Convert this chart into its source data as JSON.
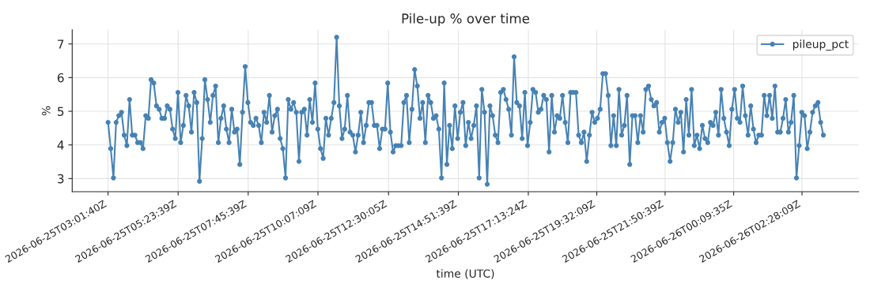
{
  "chart_data": {
    "type": "line",
    "title": "Pile-up % over time",
    "xlabel": "time (UTC)",
    "ylabel": "%",
    "x": [
      "2026-06-25T03:01:40",
      "2026-06-25T03:07:07",
      "2026-06-25T03:12:34",
      "2026-06-25T03:18:01",
      "2026-06-25T03:23:28",
      "2026-06-25T03:28:55",
      "2026-06-25T03:34:22",
      "2026-06-25T03:39:49",
      "2026-06-25T03:45:16",
      "2026-06-25T03:50:43",
      "2026-06-25T03:56:10",
      "2026-06-25T04:01:37",
      "2026-06-25T04:07:04",
      "2026-06-25T04:12:31",
      "2026-06-25T04:17:58",
      "2026-06-25T04:23:25",
      "2026-06-25T04:28:52",
      "2026-06-25T04:34:19",
      "2026-06-25T04:39:46",
      "2026-06-25T04:45:13",
      "2026-06-25T04:50:40",
      "2026-06-25T04:56:07",
      "2026-06-25T05:01:34",
      "2026-06-25T05:07:01",
      "2026-06-25T05:12:28",
      "2026-06-25T05:17:55",
      "2026-06-25T05:23:22",
      "2026-06-25T05:28:49",
      "2026-06-25T05:34:16",
      "2026-06-25T05:39:43",
      "2026-06-25T05:45:10",
      "2026-06-25T05:50:37",
      "2026-06-25T05:56:04",
      "2026-06-25T06:01:31",
      "2026-06-25T06:06:58",
      "2026-06-25T06:12:25",
      "2026-06-25T06:17:52",
      "2026-06-25T06:23:19",
      "2026-06-25T06:28:46",
      "2026-06-25T06:34:13",
      "2026-06-25T06:39:40",
      "2026-06-25T06:45:07",
      "2026-06-25T06:50:34",
      "2026-06-25T06:56:01",
      "2026-06-25T07:01:28",
      "2026-06-25T07:06:55",
      "2026-06-25T07:12:22",
      "2026-06-25T07:17:49",
      "2026-06-25T07:23:16",
      "2026-06-25T07:28:43",
      "2026-06-25T07:34:10",
      "2026-06-25T07:39:37",
      "2026-06-25T07:45:04",
      "2026-06-25T07:50:31",
      "2026-06-25T07:55:58",
      "2026-06-25T08:01:25",
      "2026-06-25T08:06:52",
      "2026-06-25T08:12:19",
      "2026-06-25T08:17:46",
      "2026-06-25T08:23:13",
      "2026-06-25T08:28:40",
      "2026-06-25T08:34:07",
      "2026-06-25T08:39:34",
      "2026-06-25T08:45:01",
      "2026-06-25T08:50:28",
      "2026-06-25T08:55:55",
      "2026-06-25T09:01:22",
      "2026-06-25T09:06:49",
      "2026-06-25T09:12:16",
      "2026-06-25T09:17:43",
      "2026-06-25T09:23:10",
      "2026-06-25T09:28:37",
      "2026-06-25T09:34:04",
      "2026-06-25T09:39:31",
      "2026-06-25T09:44:58",
      "2026-06-25T09:50:25",
      "2026-06-25T09:55:52",
      "2026-06-25T10:01:19",
      "2026-06-25T10:06:46",
      "2026-06-25T10:12:13",
      "2026-06-25T10:17:40",
      "2026-06-25T10:23:07",
      "2026-06-25T10:28:34",
      "2026-06-25T10:34:01",
      "2026-06-25T10:39:28",
      "2026-06-25T10:44:55",
      "2026-06-25T10:50:22",
      "2026-06-25T10:55:49",
      "2026-06-25T11:01:16",
      "2026-06-25T11:06:43",
      "2026-06-25T11:12:10",
      "2026-06-25T11:17:37",
      "2026-06-25T11:23:04",
      "2026-06-25T11:28:31",
      "2026-06-25T11:33:58",
      "2026-06-25T11:39:25",
      "2026-06-25T11:44:52",
      "2026-06-25T11:50:19",
      "2026-06-25T11:55:46",
      "2026-06-25T12:01:13",
      "2026-06-25T12:06:40",
      "2026-06-25T12:12:07",
      "2026-06-25T12:17:34",
      "2026-06-25T12:23:01",
      "2026-06-25T12:28:28",
      "2026-06-25T12:33:55",
      "2026-06-25T12:39:22",
      "2026-06-25T12:44:49",
      "2026-06-25T12:50:16",
      "2026-06-25T12:55:43",
      "2026-06-25T13:01:10",
      "2026-06-25T13:06:37",
      "2026-06-25T13:12:04",
      "2026-06-25T13:17:31",
      "2026-06-25T13:22:58",
      "2026-06-25T13:28:25",
      "2026-06-25T13:33:52",
      "2026-06-25T13:39:19",
      "2026-06-25T13:44:46",
      "2026-06-25T13:50:13",
      "2026-06-25T13:55:40",
      "2026-06-25T14:01:07",
      "2026-06-25T14:06:34",
      "2026-06-25T14:12:01",
      "2026-06-25T14:17:28",
      "2026-06-25T14:22:55",
      "2026-06-25T14:28:22",
      "2026-06-25T14:33:49",
      "2026-06-25T14:39:16",
      "2026-06-25T14:44:43",
      "2026-06-25T14:50:10",
      "2026-06-25T14:55:37",
      "2026-06-25T15:01:04",
      "2026-06-25T15:06:31",
      "2026-06-25T15:11:58",
      "2026-06-25T15:17:25",
      "2026-06-25T15:22:52",
      "2026-06-25T15:28:19",
      "2026-06-25T15:33:46",
      "2026-06-25T15:39:13",
      "2026-06-25T15:44:40",
      "2026-06-25T15:50:07",
      "2026-06-25T15:55:34",
      "2026-06-25T16:01:01",
      "2026-06-25T16:06:28",
      "2026-06-25T16:11:55",
      "2026-06-25T16:17:22",
      "2026-06-25T16:22:49",
      "2026-06-25T16:28:16",
      "2026-06-25T16:33:43",
      "2026-06-25T16:39:10",
      "2026-06-25T16:44:37",
      "2026-06-25T16:50:04",
      "2026-06-25T16:55:31",
      "2026-06-25T17:00:58",
      "2026-06-25T17:06:25",
      "2026-06-25T17:11:52",
      "2026-06-25T17:17:19",
      "2026-06-25T17:22:46",
      "2026-06-25T17:28:13",
      "2026-06-25T17:33:40",
      "2026-06-25T17:39:07",
      "2026-06-25T17:44:34",
      "2026-06-25T17:50:01",
      "2026-06-25T17:55:28",
      "2026-06-25T18:00:55",
      "2026-06-25T18:06:22",
      "2026-06-25T18:11:49",
      "2026-06-25T18:17:16",
      "2026-06-25T18:22:43",
      "2026-06-25T18:28:10",
      "2026-06-25T18:33:37",
      "2026-06-25T18:39:04",
      "2026-06-25T18:44:31",
      "2026-06-25T18:49:58",
      "2026-06-25T18:55:25",
      "2026-06-25T19:00:52",
      "2026-06-25T19:06:19",
      "2026-06-25T19:11:46",
      "2026-06-25T19:17:13",
      "2026-06-25T19:22:40",
      "2026-06-25T19:28:07",
      "2026-06-25T19:33:34",
      "2026-06-25T19:39:01",
      "2026-06-25T19:44:28",
      "2026-06-25T19:49:55",
      "2026-06-25T19:55:22",
      "2026-06-25T20:00:49",
      "2026-06-25T20:06:16",
      "2026-06-25T20:11:43",
      "2026-06-25T20:17:10",
      "2026-06-25T20:22:37",
      "2026-06-25T20:28:04",
      "2026-06-25T20:33:31",
      "2026-06-25T20:38:58",
      "2026-06-25T20:44:25",
      "2026-06-25T20:49:52",
      "2026-06-25T20:55:19",
      "2026-06-25T21:00:46",
      "2026-06-25T21:06:13",
      "2026-06-25T21:11:40",
      "2026-06-25T21:17:07",
      "2026-06-25T21:22:34",
      "2026-06-25T21:28:01",
      "2026-06-25T21:33:28",
      "2026-06-25T21:38:55",
      "2026-06-25T21:44:22",
      "2026-06-25T21:49:49",
      "2026-06-25T21:55:16",
      "2026-06-25T22:00:43",
      "2026-06-25T22:06:10",
      "2026-06-25T22:11:37",
      "2026-06-25T22:17:04",
      "2026-06-25T22:22:31",
      "2026-06-25T22:27:58",
      "2026-06-25T22:33:25",
      "2026-06-25T22:38:52",
      "2026-06-25T22:44:19",
      "2026-06-25T22:49:46",
      "2026-06-25T22:55:13",
      "2026-06-25T23:00:40",
      "2026-06-25T23:06:07",
      "2026-06-25T23:11:34",
      "2026-06-25T23:17:01",
      "2026-06-25T23:22:28",
      "2026-06-25T23:27:55",
      "2026-06-25T23:33:22",
      "2026-06-25T23:38:49",
      "2026-06-25T23:44:16",
      "2026-06-25T23:49:43",
      "2026-06-25T23:55:10",
      "2026-06-26T00:00:37",
      "2026-06-26T00:06:04",
      "2026-06-26T00:11:31",
      "2026-06-26T00:16:58",
      "2026-06-26T00:22:25",
      "2026-06-26T00:27:52",
      "2026-06-26T00:33:19",
      "2026-06-26T00:38:46",
      "2026-06-26T00:44:13",
      "2026-06-26T00:49:40",
      "2026-06-26T00:55:07",
      "2026-06-26T01:00:34",
      "2026-06-26T01:06:01",
      "2026-06-26T01:11:28",
      "2026-06-26T01:16:55",
      "2026-06-26T01:22:22",
      "2026-06-26T01:27:49",
      "2026-06-26T01:33:16",
      "2026-06-26T01:38:43",
      "2026-06-26T01:44:10",
      "2026-06-26T01:49:37",
      "2026-06-26T01:55:04",
      "2026-06-26T02:00:31",
      "2026-06-26T02:05:58",
      "2026-06-26T02:11:25",
      "2026-06-26T02:16:52",
      "2026-06-26T02:22:19",
      "2026-06-26T02:27:46",
      "2026-06-26T02:33:13",
      "2026-06-26T02:38:40",
      "2026-06-26T02:44:07",
      "2026-06-26T02:49:34",
      "2026-06-26T02:55:01",
      "2026-06-26T03:00:28",
      "2026-06-26T03:05:55",
      "2026-06-26T03:11:22"
    ],
    "series": [
      {
        "name": "pileup_pct",
        "color": "#4682b4",
        "values": [
          4.67,
          3.89,
          3.02,
          4.67,
          4.87,
          4.97,
          4.29,
          3.98,
          5.35,
          4.29,
          4.29,
          4.07,
          4.07,
          3.89,
          4.87,
          4.79,
          5.94,
          5.84,
          5.16,
          5.06,
          4.79,
          4.79,
          5.16,
          5.06,
          4.47,
          4.19,
          5.56,
          4.07,
          4.58,
          5.47,
          5.16,
          4.38,
          5.56,
          5.26,
          2.92,
          4.19,
          5.94,
          5.35,
          4.67,
          5.47,
          5.75,
          4.07,
          4.79,
          5.16,
          4.47,
          4.07,
          5.06,
          4.38,
          4.47,
          3.42,
          4.97,
          6.33,
          5.26,
          4.67,
          4.58,
          4.79,
          4.58,
          4.07,
          4.97,
          4.67,
          5.47,
          4.38,
          4.87,
          5.06,
          4.19,
          3.89,
          3.02,
          5.35,
          5.06,
          5.26,
          4.97,
          3.51,
          4.97,
          5.06,
          4.29,
          5.35,
          4.67,
          5.84,
          4.47,
          3.89,
          3.6,
          4.79,
          4.29,
          4.79,
          5.26,
          7.2,
          5.16,
          4.19,
          4.47,
          5.47,
          4.38,
          4.29,
          3.79,
          4.29,
          4.97,
          4.07,
          4.58,
          5.26,
          5.26,
          4.58,
          4.58,
          3.89,
          4.47,
          4.47,
          5.84,
          4.38,
          3.79,
          3.98,
          3.98,
          3.98,
          5.26,
          5.47,
          4.07,
          5.06,
          6.24,
          5.75,
          4.79,
          5.26,
          4.07,
          5.47,
          5.26,
          4.79,
          4.87,
          4.47,
          3.02,
          5.84,
          3.42,
          4.58,
          3.89,
          5.16,
          4.19,
          4.97,
          5.26,
          3.98,
          4.67,
          4.19,
          4.58,
          5.16,
          3.02,
          5.65,
          4.97,
          2.83,
          5.16,
          4.87,
          4.29,
          4.07,
          5.56,
          5.65,
          5.35,
          5.06,
          4.29,
          6.62,
          5.26,
          5.16,
          4.19,
          5.56,
          3.98,
          4.67,
          5.65,
          5.56,
          4.97,
          5.06,
          5.47,
          5.35,
          3.79,
          5.47,
          4.38,
          4.87,
          4.79,
          5.47,
          4.67,
          4.07,
          5.56,
          5.56,
          5.56,
          4.29,
          4.07,
          4.38,
          3.51,
          4.29,
          4.97,
          4.67,
          4.79,
          5.06,
          6.12,
          6.12,
          5.47,
          3.98,
          4.87,
          3.98,
          5.65,
          4.29,
          4.58,
          5.47,
          3.42,
          4.87,
          4.87,
          4.07,
          4.87,
          4.38,
          5.65,
          5.75,
          5.35,
          5.16,
          5.26,
          4.38,
          4.67,
          4.79,
          4.07,
          3.51,
          4.07,
          5.06,
          4.67,
          4.97,
          3.79,
          5.35,
          4.29,
          5.65,
          3.98,
          4.29,
          3.89,
          4.58,
          4.19,
          4.07,
          4.67,
          4.58,
          4.97,
          4.29,
          5.65,
          4.79,
          4.38,
          3.98,
          5.06,
          5.65,
          4.79,
          4.67,
          5.75,
          4.87,
          4.29,
          5.16,
          4.47,
          4.07,
          4.29,
          4.29,
          5.47,
          4.87,
          5.47,
          4.79,
          5.75,
          4.38,
          4.38,
          4.79,
          5.35,
          4.38,
          4.67,
          5.47,
          3.02,
          3.98,
          4.97,
          4.87,
          3.89,
          4.38,
          4.97,
          5.16,
          5.26,
          4.67,
          4.29
        ]
      }
    ],
    "xlim": [
      "2026-06-25T01:49",
      "2026-06-26T04:23"
    ],
    "xticks": [
      {
        "value": "2026-06-25T03:01:40",
        "label": "2026-06-25T03:01:40Z"
      },
      {
        "value": "2026-06-25T05:23:39",
        "label": "2026-06-25T05:23:39Z"
      },
      {
        "value": "2026-06-25T07:45:39",
        "label": "2026-06-25T07:45:39Z"
      },
      {
        "value": "2026-06-25T10:07:09",
        "label": "2026-06-25T10:07:09Z"
      },
      {
        "value": "2026-06-25T12:30:05",
        "label": "2026-06-25T12:30:05Z"
      },
      {
        "value": "2026-06-25T14:51:39",
        "label": "2026-06-25T14:51:39Z"
      },
      {
        "value": "2026-06-25T17:13:24",
        "label": "2026-06-25T17:13:24Z"
      },
      {
        "value": "2026-06-25T19:32:09",
        "label": "2026-06-25T19:32:09Z"
      },
      {
        "value": "2026-06-25T21:50:39",
        "label": "2026-06-25T21:50:39Z"
      },
      {
        "value": "2026-06-26T00:09:35",
        "label": "2026-06-26T00:09:35Z"
      },
      {
        "value": "2026-06-26T02:28:09",
        "label": "2026-06-26T02:28:09Z"
      }
    ],
    "ylim": [
      2.61,
      7.42
    ],
    "yticks": [
      3,
      4,
      5,
      6,
      7
    ],
    "grid": true,
    "legend": "top right",
    "marker": "circle",
    "line_style": "solid"
  }
}
